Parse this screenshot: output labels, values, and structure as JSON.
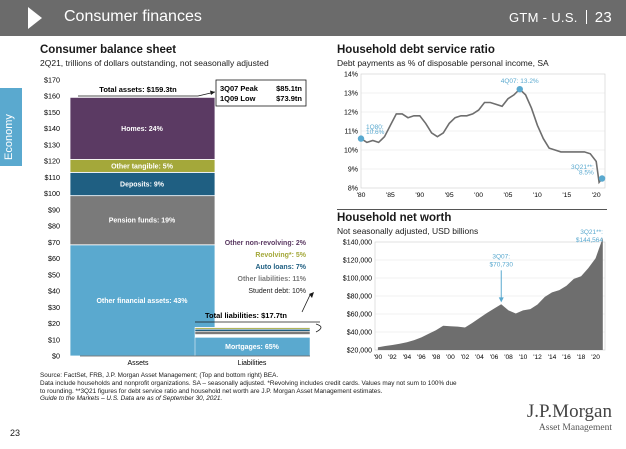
{
  "header": {
    "title": "Consumer finances",
    "region": "GTM - U.S.",
    "page": "23"
  },
  "sidebar": {
    "label": "Economy"
  },
  "balance_sheet": {
    "title": "Consumer balance sheet",
    "subtitle": "2Q21, trillions of dollars outstanding, not seasonally adjusted",
    "peak_label": "3Q07 Peak",
    "peak_value": "$85.1tn",
    "low_label": "1Q09 Low",
    "low_value": "$73.9tn",
    "assets_callout": "Total assets: $159.3tn",
    "liabilities_callout": "Total liabilities: $17.7tn",
    "other_non_revolving": "Other non-revolving: 2%",
    "revolving": "Revolving*: 5%",
    "auto_loans": "Auto loans: 7%",
    "other_liabilities": "Other liabilities: 11%",
    "student_debt": "Student debt: 10%"
  },
  "debt_service": {
    "title": "Household debt service ratio",
    "subtitle": "Debt payments as % of disposable personal income, SA",
    "ann_1q80": "1Q80:",
    "ann_1q80_val": "10.6%",
    "ann_4q07": "4Q07: 13.2%",
    "ann_3q21": "3Q21**:",
    "ann_3q21_val": "8.5%"
  },
  "net_worth": {
    "title": "Household net worth",
    "subtitle": "Not seasonally adjusted, USD billions",
    "ann_3q07": "3Q07:",
    "ann_3q07_val": "$70,730",
    "ann_3q21": "3Q21**:",
    "ann_3q21_val": "$144,564"
  },
  "footnotes": [
    "Source: FactSet, FRB, J.P. Morgan Asset Management; (Top and bottom right) BEA.",
    "Data include households and nonprofit organizations. SA – seasonally adjusted. *Revolving includes credit cards. Values may not sum to 100% due",
    "to rounding. **3Q21 figures for debt service ratio and household net worth are J.P. Morgan Asset Management estimates.",
    "Guide to the Markets – U.S. Data are as of September 30, 2021."
  ],
  "page_number": "23",
  "logo": {
    "line1": "J.P.Morgan",
    "line2": "Asset Management"
  },
  "colors": {
    "header": "#6b6b6b",
    "accent": "#5aa9cf",
    "homes": "#5b3a63",
    "other_tangible": "#a4a83a",
    "deposits": "#1f5f82",
    "pension": "#7a7a7a",
    "other_financial": "#5aa9cf",
    "area": "#6e6e6e",
    "line": "#6e6e6e"
  },
  "chart_data": [
    {
      "type": "bar",
      "stacked": true,
      "title": "Consumer balance sheet",
      "ylim": [
        0,
        170
      ],
      "y_ticks": [
        "$0",
        "$10",
        "$20",
        "$30",
        "$40",
        "$50",
        "$60",
        "$70",
        "$80",
        "$90",
        "$100",
        "$110",
        "$120",
        "$130",
        "$140",
        "$150",
        "$160",
        "$170"
      ],
      "categories": [
        "Assets",
        "Liabilities"
      ],
      "assets_total": 159.3,
      "liabilities_total": 17.7,
      "assets_segments": [
        {
          "label": "Other financial assets: 43%",
          "pct": 43
        },
        {
          "label": "Pension funds: 19%",
          "pct": 19
        },
        {
          "label": "Deposits: 9%",
          "pct": 9
        },
        {
          "label": "Other tangible: 5%",
          "pct": 5
        },
        {
          "label": "Homes: 24%",
          "pct": 24
        }
      ],
      "liabilities_segments": [
        {
          "label": "Mortgages: 65%",
          "pct": 65
        },
        {
          "label": "Student debt: 10%",
          "pct": 10
        },
        {
          "label": "Other liabilities: 11%",
          "pct": 11
        },
        {
          "label": "Auto loans: 7%",
          "pct": 7
        },
        {
          "label": "Revolving*: 5%",
          "pct": 5
        },
        {
          "label": "Other non-revolving: 2%",
          "pct": 2
        }
      ]
    },
    {
      "type": "line",
      "title": "Household debt service ratio",
      "ylim": [
        8,
        14
      ],
      "y_ticks": [
        "8%",
        "9%",
        "10%",
        "11%",
        "12%",
        "13%",
        "14%"
      ],
      "x_ticks": [
        "'80",
        "'85",
        "'90",
        "'95",
        "'00",
        "'05",
        "'10",
        "'15",
        "'20"
      ],
      "x": [
        1980,
        1981,
        1982,
        1983,
        1984,
        1985,
        1986,
        1987,
        1988,
        1989,
        1990,
        1991,
        1992,
        1993,
        1994,
        1995,
        1996,
        1997,
        1998,
        1999,
        2000,
        2001,
        2002,
        2003,
        2004,
        2005,
        2006,
        2007,
        2008,
        2009,
        2010,
        2011,
        2012,
        2013,
        2014,
        2015,
        2016,
        2017,
        2018,
        2019,
        2020,
        2020.5,
        2021
      ],
      "values": [
        10.6,
        10.4,
        10.5,
        10.4,
        10.7,
        11.3,
        11.9,
        11.9,
        11.7,
        11.8,
        11.8,
        11.4,
        10.9,
        10.7,
        10.9,
        11.4,
        11.7,
        11.8,
        11.8,
        11.9,
        12.1,
        12.5,
        12.5,
        12.4,
        12.3,
        12.7,
        12.9,
        13.2,
        12.9,
        12.2,
        11.3,
        10.6,
        10.1,
        10.0,
        9.9,
        9.9,
        9.9,
        9.9,
        9.9,
        9.8,
        9.4,
        8.3,
        8.5
      ]
    },
    {
      "type": "area",
      "title": "Household net worth",
      "ylim": [
        20000,
        140000
      ],
      "y_ticks": [
        "$20,000",
        "$40,000",
        "$60,000",
        "$80,000",
        "$100,000",
        "$120,000",
        "$140,000"
      ],
      "x_ticks": [
        "'90",
        "'92",
        "'94",
        "'96",
        "'98",
        "'00",
        "'02",
        "'04",
        "'06",
        "'08",
        "'10",
        "'12",
        "'14",
        "'16",
        "'18",
        "'20"
      ],
      "x": [
        1990,
        1991,
        1992,
        1993,
        1994,
        1995,
        1996,
        1997,
        1998,
        1999,
        2000,
        2001,
        2002,
        2003,
        2004,
        2005,
        2006,
        2007,
        2008,
        2009,
        2010,
        2011,
        2012,
        2013,
        2014,
        2015,
        2016,
        2017,
        2018,
        2019,
        2020,
        2021
      ],
      "values": [
        23000,
        24500,
        25500,
        27000,
        28500,
        31000,
        34000,
        38000,
        42000,
        47000,
        46500,
        46000,
        45000,
        50000,
        55500,
        61000,
        66000,
        70730,
        64000,
        60500,
        64000,
        65500,
        70500,
        79000,
        84000,
        86500,
        91500,
        99000,
        102000,
        111000,
        122000,
        144564
      ]
    }
  ]
}
